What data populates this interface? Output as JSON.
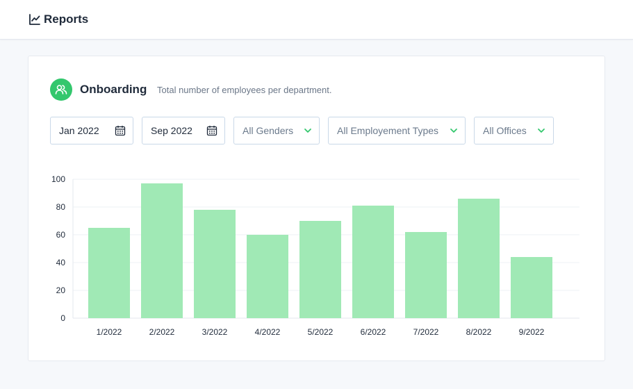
{
  "header": {
    "title": "Reports",
    "icon": "line-chart-icon"
  },
  "section": {
    "icon": "users-icon",
    "title": "Onboarding",
    "subtitle": "Total number of employees per department."
  },
  "filters": {
    "start_date": "Jan 2022",
    "end_date": "Sep 2022",
    "gender": "All Genders",
    "employment_type": "All Employement Types",
    "office": "All Offices"
  },
  "colors": {
    "accent": "#33c76d",
    "bar": "#a0e9b5",
    "border": "#c9d8e8"
  },
  "chart_data": {
    "type": "bar",
    "categories": [
      "1/2022",
      "2/2022",
      "3/2022",
      "4/2022",
      "5/2022",
      "6/2022",
      "7/2022",
      "8/2022",
      "9/2022"
    ],
    "values": [
      65,
      97,
      78,
      60,
      70,
      81,
      62,
      86,
      44
    ],
    "ylim": [
      0,
      100
    ],
    "yticks": [
      0,
      20,
      40,
      60,
      80,
      100
    ],
    "title": "",
    "xlabel": "",
    "ylabel": "",
    "grid": true
  }
}
